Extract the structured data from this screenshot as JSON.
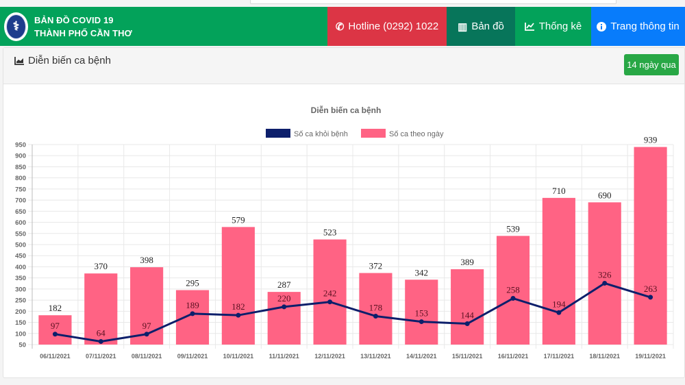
{
  "header": {
    "brand_line1": "BẢN ĐỒ COVID 19",
    "brand_line2": "THÀNH PHỐ CẦN THƠ",
    "logo_icon": "caduceus-emblem-icon",
    "nav": [
      {
        "label": "Hotline (0292) 1022",
        "icon": "phone-icon",
        "glyph": "✆",
        "color": "#dc3545"
      },
      {
        "label": "Bản đồ",
        "icon": "map-icon",
        "glyph": "▥",
        "color": "#07755a"
      },
      {
        "label": "Thống kê",
        "icon": "line-chart-icon",
        "glyph": "📈",
        "color": "#03a25a"
      },
      {
        "label": "Trang thông tin",
        "icon": "info-circle-icon",
        "glyph": "ℹ",
        "color": "#087cfb"
      }
    ],
    "brand_color": "#03a25a"
  },
  "card": {
    "title": "Diễn biến ca bệnh",
    "title_icon": "area-chart-icon",
    "range_button": "14 ngày qua"
  },
  "chart_data": {
    "type": "bar",
    "title": "Diễn biến ca bệnh",
    "xlabel": "",
    "ylabel": "",
    "ylim": [
      50,
      950
    ],
    "yticks": [
      50,
      100,
      150,
      200,
      250,
      300,
      350,
      400,
      450,
      500,
      550,
      600,
      650,
      700,
      750,
      800,
      850,
      900,
      950
    ],
    "grid": true,
    "legend_position": "top",
    "categories": [
      "06/11/2021",
      "07/11/2021",
      "08/11/2021",
      "09/11/2021",
      "10/11/2021",
      "11/11/2021",
      "12/11/2021",
      "13/11/2021",
      "14/11/2021",
      "15/11/2021",
      "16/11/2021",
      "17/11/2021",
      "18/11/2021",
      "19/11/2021"
    ],
    "series": [
      {
        "name": "Số ca khỏi bệnh",
        "type": "line",
        "color": "#0d1f6b",
        "values": [
          97,
          64,
          97,
          189,
          182,
          220,
          242,
          178,
          153,
          144,
          258,
          194,
          326,
          263
        ]
      },
      {
        "name": "Số ca theo ngày",
        "type": "bar",
        "color": "#ff6384",
        "values": [
          182,
          370,
          398,
          295,
          579,
          287,
          523,
          372,
          342,
          389,
          539,
          710,
          690,
          939
        ]
      }
    ]
  }
}
